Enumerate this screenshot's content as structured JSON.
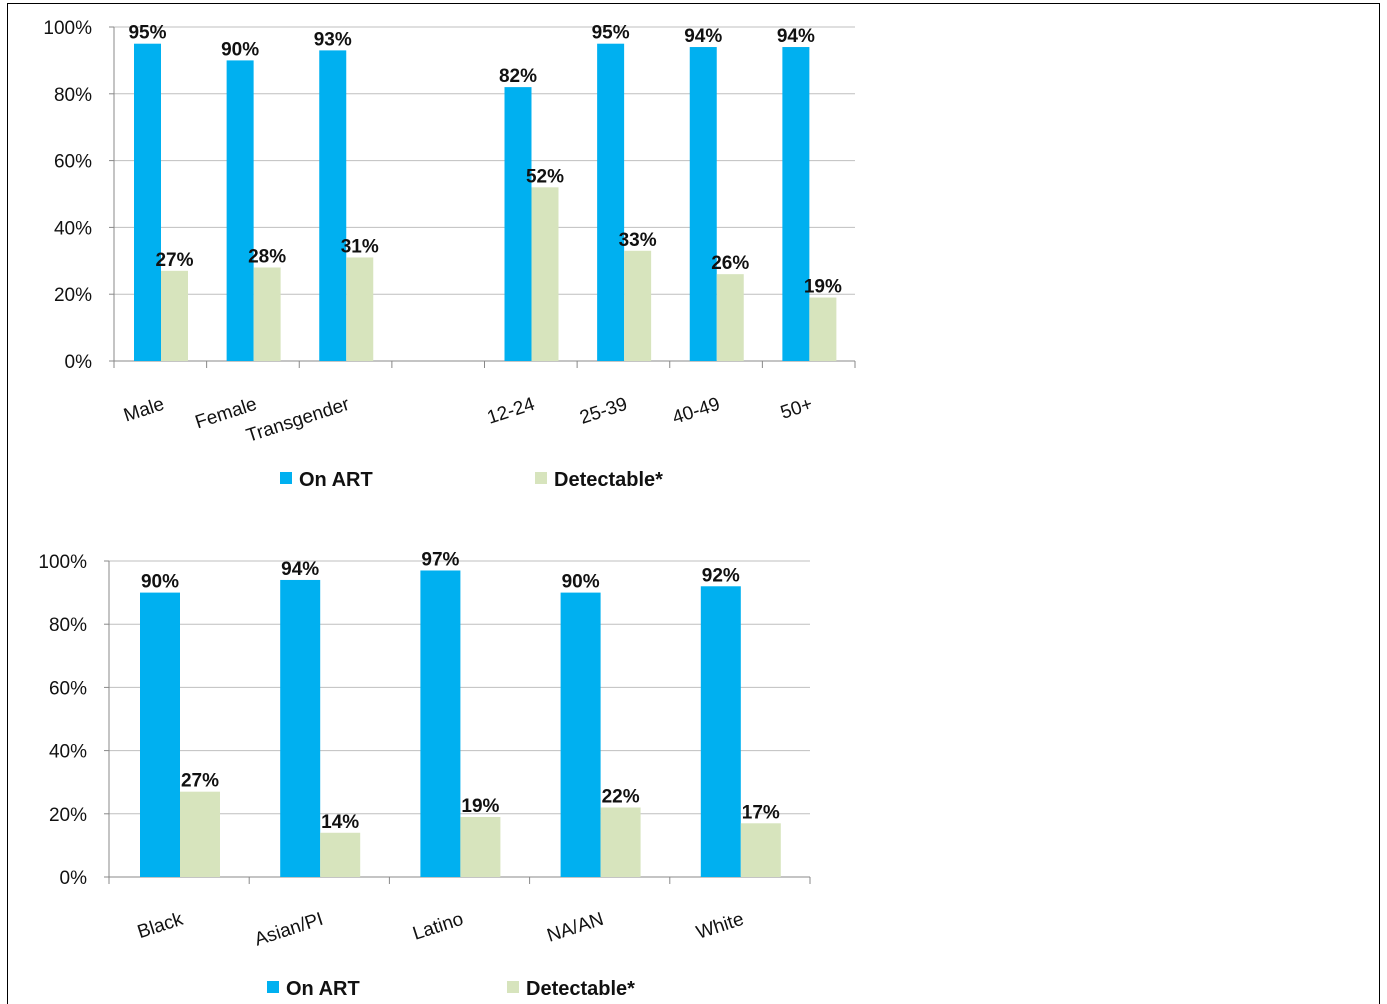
{
  "colors": {
    "on_art": "#00b0f0",
    "detectable": "#d7e4bd",
    "grid": "#bfbfbf",
    "axis": "#888888"
  },
  "chart_data": [
    {
      "type": "bar",
      "categories": [
        "Male",
        "Female",
        "Transgender",
        "",
        "12-24",
        "25-39",
        "40-49",
        "50+"
      ],
      "series": [
        {
          "name": "On ART",
          "values": [
            95,
            90,
            93,
            null,
            82,
            95,
            94,
            94
          ],
          "labels": [
            "95%",
            "90%",
            "93%",
            "",
            "82%",
            "95%",
            "94%",
            "94%"
          ]
        },
        {
          "name": "Detectable*",
          "values": [
            27,
            28,
            31,
            null,
            52,
            33,
            26,
            19
          ],
          "labels": [
            "27%",
            "28%",
            "31%",
            "",
            "52%",
            "33%",
            "26%",
            "19%"
          ]
        }
      ],
      "ylim": [
        0,
        100
      ],
      "yticks": [
        "0%",
        "20%",
        "40%",
        "60%",
        "80%",
        "100%"
      ],
      "grid": true,
      "legend": "bottom"
    },
    {
      "type": "bar",
      "categories": [
        "Black",
        "Asian/PI",
        "Latino",
        "NA/AN",
        "White"
      ],
      "series": [
        {
          "name": "On ART",
          "values": [
            90,
            94,
            97,
            90,
            92
          ],
          "labels": [
            "90%",
            "94%",
            "97%",
            "90%",
            "92%"
          ]
        },
        {
          "name": "Detectable*",
          "values": [
            27,
            14,
            19,
            22,
            17
          ],
          "labels": [
            "27%",
            "14%",
            "19%",
            "22%",
            "17%"
          ]
        }
      ],
      "ylim": [
        0,
        100
      ],
      "yticks": [
        "0%",
        "20%",
        "40%",
        "60%",
        "80%",
        "100%"
      ],
      "grid": true,
      "legend": "bottom"
    }
  ]
}
